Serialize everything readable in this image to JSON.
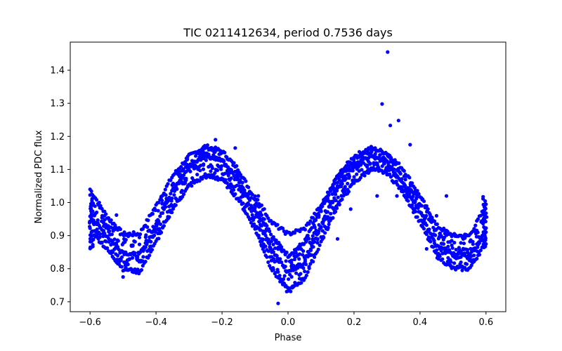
{
  "chart_data": {
    "type": "scatter",
    "title": "TIC 0211412634, period 0.7536 days",
    "xlabel": "Phase",
    "ylabel": "Normalized PDC flux",
    "xlim": [
      -0.66,
      0.66
    ],
    "ylim": [
      0.67,
      1.485
    ],
    "xticks": [
      -0.6,
      -0.4,
      -0.2,
      0.0,
      0.2,
      0.4,
      0.6
    ],
    "xtick_labels": [
      "−0.6",
      "−0.4",
      "−0.2",
      "0.0",
      "0.2",
      "0.4",
      "0.6"
    ],
    "yticks": [
      0.7,
      0.8,
      0.9,
      1.0,
      1.1,
      1.2,
      1.3,
      1.4
    ],
    "ytick_labels": [
      "0.7",
      "0.8",
      "0.9",
      "1.0",
      "1.1",
      "1.2",
      "1.3",
      "1.4"
    ],
    "grid": false,
    "marker_color": "#0000ff",
    "band_curves": [
      {
        "x": [
          -0.6,
          -0.55,
          -0.5,
          -0.45,
          -0.4,
          -0.35,
          -0.3,
          -0.25,
          -0.2,
          -0.15,
          -0.1,
          -0.05,
          0.0,
          0.05,
          0.1,
          0.15,
          0.2,
          0.25,
          0.3,
          0.35,
          0.4,
          0.45,
          0.5,
          0.55,
          0.6
        ],
        "y": [
          1.04,
          0.96,
          0.905,
          0.905,
          0.99,
          1.08,
          1.14,
          1.17,
          1.155,
          1.1,
          1.01,
          0.9,
          0.84,
          0.88,
          0.98,
          1.08,
          1.14,
          1.165,
          1.15,
          1.1,
          1.02,
          0.93,
          0.9,
          0.9,
          0.99
        ]
      },
      {
        "x": [
          -0.6,
          -0.55,
          -0.5,
          -0.45,
          -0.4,
          -0.35,
          -0.3,
          -0.25,
          -0.2,
          -0.15,
          -0.1,
          -0.05,
          0.0,
          0.05,
          0.1,
          0.15,
          0.2,
          0.25,
          0.3,
          0.35,
          0.4,
          0.45,
          0.5,
          0.55,
          0.6
        ],
        "y": [
          0.96,
          0.9,
          0.85,
          0.84,
          0.93,
          1.04,
          1.11,
          1.14,
          1.13,
          1.07,
          0.97,
          0.86,
          0.79,
          0.82,
          0.93,
          1.04,
          1.11,
          1.14,
          1.12,
          1.06,
          0.97,
          0.87,
          0.84,
          0.84,
          0.91
        ]
      },
      {
        "x": [
          -0.6,
          -0.55,
          -0.5,
          -0.45,
          -0.4,
          -0.35,
          -0.3,
          -0.25,
          -0.2,
          -0.15,
          -0.1,
          -0.05,
          0.0,
          0.05,
          0.1,
          0.15,
          0.2,
          0.25,
          0.3,
          0.35,
          0.4,
          0.45,
          0.5,
          0.55,
          0.6
        ],
        "y": [
          0.92,
          0.86,
          0.8,
          0.79,
          0.88,
          0.98,
          1.05,
          1.08,
          1.07,
          1.01,
          0.92,
          0.8,
          0.73,
          0.77,
          0.88,
          0.99,
          1.06,
          1.1,
          1.09,
          1.03,
          0.94,
          0.84,
          0.8,
          0.8,
          0.88
        ]
      },
      {
        "x": [
          -0.1,
          -0.05,
          0.0,
          0.05,
          0.1,
          0.15,
          0.2
        ],
        "y": [
          1.02,
          0.94,
          0.905,
          0.92,
          0.99,
          1.08,
          1.12
        ]
      }
    ],
    "outliers": [
      {
        "x": 0.302,
        "y": 1.455
      },
      {
        "x": 0.285,
        "y": 1.298
      },
      {
        "x": 0.335,
        "y": 1.248
      },
      {
        "x": 0.31,
        "y": 1.233
      },
      {
        "x": -0.22,
        "y": 1.19
      },
      {
        "x": -0.16,
        "y": 1.165
      },
      {
        "x": 0.37,
        "y": 1.175
      },
      {
        "x": -0.52,
        "y": 0.962
      },
      {
        "x": -0.59,
        "y": 0.888
      },
      {
        "x": -0.5,
        "y": 0.775
      },
      {
        "x": -0.03,
        "y": 0.695
      },
      {
        "x": 0.48,
        "y": 1.02
      },
      {
        "x": 0.45,
        "y": 0.96
      },
      {
        "x": 0.27,
        "y": 1.02
      },
      {
        "x": 0.33,
        "y": 1.02
      },
      {
        "x": 0.38,
        "y": 0.98
      },
      {
        "x": 0.19,
        "y": 0.98
      },
      {
        "x": 0.15,
        "y": 0.89
      },
      {
        "x": 0.035,
        "y": 0.77
      },
      {
        "x": -0.09,
        "y": 1.02
      },
      {
        "x": 0.42,
        "y": 0.86
      }
    ]
  }
}
